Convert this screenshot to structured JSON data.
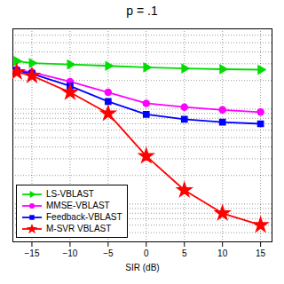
{
  "chart_data": {
    "type": "line",
    "title": "p = .1",
    "xlabel": "SIR (dB)",
    "x": [
      -17,
      -15,
      -10,
      -5,
      0,
      5,
      10,
      15
    ],
    "series": [
      {
        "name": "LS-VBLAST",
        "color": "#00dd00",
        "marker": "triangle-right",
        "values": [
          0.32,
          0.305,
          0.295,
          0.285,
          0.275,
          0.268,
          0.263,
          0.26
        ]
      },
      {
        "name": "MMSE-VBLAST",
        "color": "#ff00ff",
        "marker": "circle",
        "values": [
          0.26,
          0.245,
          0.195,
          0.15,
          0.115,
          0.105,
          0.098,
          0.093
        ]
      },
      {
        "name": "Feedback-VBLAST",
        "color": "#0000ff",
        "marker": "square",
        "values": [
          0.255,
          0.235,
          0.175,
          0.12,
          0.088,
          0.078,
          0.073,
          0.07
        ]
      },
      {
        "name": "M-SVR VBLAST",
        "color": "#ff0000",
        "marker": "star",
        "values": [
          0.245,
          0.225,
          0.15,
          0.09,
          0.032,
          0.014,
          0.008,
          0.006
        ]
      }
    ],
    "xlim": [
      -17.5,
      16.5
    ],
    "ylim": [
      0.004,
      0.7
    ],
    "xticks": [
      -15,
      -10,
      -5,
      0,
      5,
      10,
      15
    ],
    "yticks": [
      0.004,
      0.005,
      0.006,
      0.007,
      0.008,
      0.009,
      0.01,
      0.02,
      0.03,
      0.04,
      0.05,
      0.06,
      0.07,
      0.08,
      0.09,
      0.1,
      0.2,
      0.3,
      0.4,
      0.5,
      0.6,
      0.7
    ],
    "log": "y",
    "grid": true,
    "legend": "lower left",
    "tick_labels": "x"
  }
}
